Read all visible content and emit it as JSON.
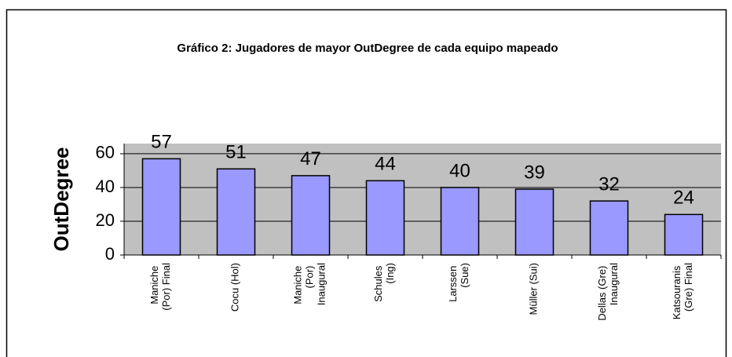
{
  "chart_data": {
    "type": "bar",
    "title": "Gráfico 2: Jugadores de mayor OutDegree de cada equipo mapeado",
    "y_label": "OutDegree",
    "categories": [
      "Maniche (Por) Final",
      "Cocu (Hol)",
      "Maniche (Por) Inaugural",
      "Schules (Ing)",
      "Larssen (Sue)",
      "Müller (Sui)",
      "Dellas (Gre) Inaugural",
      "Katsouranis (Gre) Final"
    ],
    "values": [
      57,
      51,
      47,
      44,
      40,
      39,
      32,
      24
    ],
    "color": "#9999ff",
    "ylim": [
      0,
      66
    ],
    "yticks": [
      0,
      20,
      40,
      60
    ],
    "grid": true
  }
}
